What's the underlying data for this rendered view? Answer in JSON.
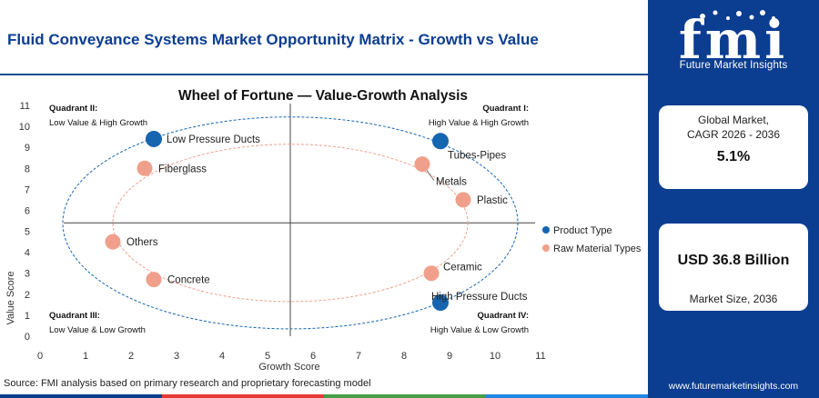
{
  "header": {
    "title": "Fluid Conveyance Systems Market Opportunity Matrix - Growth vs Value"
  },
  "brand": {
    "logo_letters": "fmi",
    "logo_subtitle": "Future Market Insights",
    "url": "www.futuremarketinsights.com"
  },
  "stats": {
    "cagr_label_line1": "Global Market,",
    "cagr_label_line2": "CAGR 2026 - 2036",
    "cagr_value": "5.1%",
    "size_value": "USD 36.8 Billion",
    "size_label": "Market Size, 2036"
  },
  "source": "Source: FMI analysis based on primary research and proprietary forecasting model",
  "colors": {
    "brand_blue": "#0b3d91",
    "product": "#1565b0",
    "raw": "#f0a08a",
    "bottom_bar": [
      "#0b3d91",
      "#e53935",
      "#43a047",
      "#1e88e5"
    ]
  },
  "chart_data": {
    "type": "scatter",
    "title": "Wheel of Fortune — Value-Growth Analysis",
    "xlabel": "Growth Score",
    "ylabel": "Value Score",
    "xlim": [
      0,
      11
    ],
    "ylim": [
      0,
      11
    ],
    "xticks": [
      0,
      1,
      2,
      3,
      4,
      5,
      6,
      7,
      8,
      9,
      10,
      11
    ],
    "yticks": [
      0,
      1,
      2,
      3,
      4,
      5,
      6,
      7,
      8,
      9,
      10,
      11
    ],
    "divider_x": 5.5,
    "divider_y": 5.4,
    "quadrants": [
      {
        "title": "Quadrant II:",
        "subtitle": "Low Value & High Growth",
        "position": "top-left"
      },
      {
        "title": "Quadrant I:",
        "subtitle": "High Value & High Growth",
        "position": "top-right"
      },
      {
        "title": "Quadrant III:",
        "subtitle": "Low Value & Low Growth",
        "position": "bottom-left"
      },
      {
        "title": "Quadrant IV:",
        "subtitle": "High Value & Low Growth",
        "position": "bottom-right"
      }
    ],
    "ellipses": [
      {
        "series": "Product Type",
        "cx": 5.5,
        "cy": 5.4,
        "rx": 5.0,
        "ry": 5.05,
        "color": "#1565b0"
      },
      {
        "series": "Raw Material Types",
        "cx": 5.5,
        "cy": 5.4,
        "rx": 3.9,
        "ry": 3.75,
        "color": "#f0a08a"
      }
    ],
    "series": [
      {
        "name": "Product Type",
        "color": "#1565b0",
        "points": [
          {
            "label": "Low Pressure Ducts",
            "x": 2.5,
            "y": 9.4
          },
          {
            "label": "Tubes-Pipes",
            "x": 8.8,
            "y": 9.3
          },
          {
            "label": "High Pressure Ducts",
            "x": 8.8,
            "y": 1.6
          }
        ]
      },
      {
        "name": "Raw Material Types",
        "color": "#f0a08a",
        "points": [
          {
            "label": "Fiberglass",
            "x": 2.3,
            "y": 8.0
          },
          {
            "label": "Metals",
            "x": 8.4,
            "y": 8.2
          },
          {
            "label": "Plastic",
            "x": 9.3,
            "y": 6.5
          },
          {
            "label": "Others",
            "x": 1.6,
            "y": 4.5
          },
          {
            "label": "Concrete",
            "x": 2.5,
            "y": 2.7
          },
          {
            "label": "Ceramic",
            "x": 8.6,
            "y": 3.0
          }
        ]
      }
    ],
    "legend": {
      "placement": "right",
      "entries": [
        "Product Type",
        "Raw Material Types"
      ]
    }
  }
}
